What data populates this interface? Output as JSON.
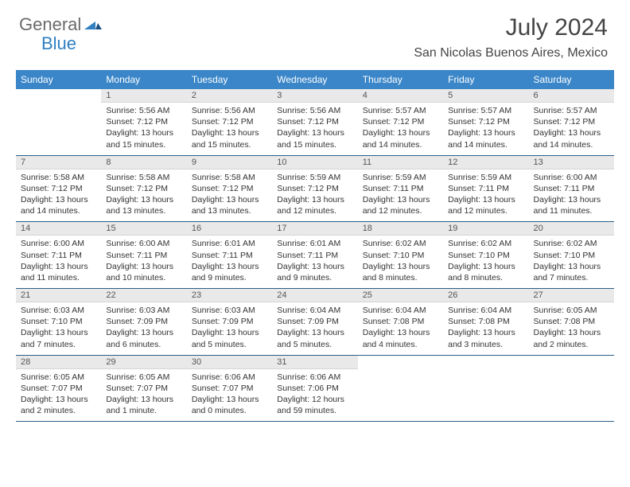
{
  "logo": {
    "general": "General",
    "blue": "Blue"
  },
  "title": "July 2024",
  "location": "San Nicolas Buenos Aires, Mexico",
  "colors": {
    "header_bg": "#3a86c8",
    "header_text": "#ffffff",
    "day_num_bg": "#e9e9e9",
    "row_border": "#2b5f8c",
    "logo_gray": "#6a6a6a",
    "logo_blue": "#2f7fc1"
  },
  "weekdays": [
    "Sunday",
    "Monday",
    "Tuesday",
    "Wednesday",
    "Thursday",
    "Friday",
    "Saturday"
  ],
  "weeks": [
    [
      {
        "n": "",
        "sr": "",
        "ss": "",
        "dl": ""
      },
      {
        "n": "1",
        "sr": "Sunrise: 5:56 AM",
        "ss": "Sunset: 7:12 PM",
        "dl": "Daylight: 13 hours and 15 minutes."
      },
      {
        "n": "2",
        "sr": "Sunrise: 5:56 AM",
        "ss": "Sunset: 7:12 PM",
        "dl": "Daylight: 13 hours and 15 minutes."
      },
      {
        "n": "3",
        "sr": "Sunrise: 5:56 AM",
        "ss": "Sunset: 7:12 PM",
        "dl": "Daylight: 13 hours and 15 minutes."
      },
      {
        "n": "4",
        "sr": "Sunrise: 5:57 AM",
        "ss": "Sunset: 7:12 PM",
        "dl": "Daylight: 13 hours and 14 minutes."
      },
      {
        "n": "5",
        "sr": "Sunrise: 5:57 AM",
        "ss": "Sunset: 7:12 PM",
        "dl": "Daylight: 13 hours and 14 minutes."
      },
      {
        "n": "6",
        "sr": "Sunrise: 5:57 AM",
        "ss": "Sunset: 7:12 PM",
        "dl": "Daylight: 13 hours and 14 minutes."
      }
    ],
    [
      {
        "n": "7",
        "sr": "Sunrise: 5:58 AM",
        "ss": "Sunset: 7:12 PM",
        "dl": "Daylight: 13 hours and 14 minutes."
      },
      {
        "n": "8",
        "sr": "Sunrise: 5:58 AM",
        "ss": "Sunset: 7:12 PM",
        "dl": "Daylight: 13 hours and 13 minutes."
      },
      {
        "n": "9",
        "sr": "Sunrise: 5:58 AM",
        "ss": "Sunset: 7:12 PM",
        "dl": "Daylight: 13 hours and 13 minutes."
      },
      {
        "n": "10",
        "sr": "Sunrise: 5:59 AM",
        "ss": "Sunset: 7:12 PM",
        "dl": "Daylight: 13 hours and 12 minutes."
      },
      {
        "n": "11",
        "sr": "Sunrise: 5:59 AM",
        "ss": "Sunset: 7:11 PM",
        "dl": "Daylight: 13 hours and 12 minutes."
      },
      {
        "n": "12",
        "sr": "Sunrise: 5:59 AM",
        "ss": "Sunset: 7:11 PM",
        "dl": "Daylight: 13 hours and 12 minutes."
      },
      {
        "n": "13",
        "sr": "Sunrise: 6:00 AM",
        "ss": "Sunset: 7:11 PM",
        "dl": "Daylight: 13 hours and 11 minutes."
      }
    ],
    [
      {
        "n": "14",
        "sr": "Sunrise: 6:00 AM",
        "ss": "Sunset: 7:11 PM",
        "dl": "Daylight: 13 hours and 11 minutes."
      },
      {
        "n": "15",
        "sr": "Sunrise: 6:00 AM",
        "ss": "Sunset: 7:11 PM",
        "dl": "Daylight: 13 hours and 10 minutes."
      },
      {
        "n": "16",
        "sr": "Sunrise: 6:01 AM",
        "ss": "Sunset: 7:11 PM",
        "dl": "Daylight: 13 hours and 9 minutes."
      },
      {
        "n": "17",
        "sr": "Sunrise: 6:01 AM",
        "ss": "Sunset: 7:11 PM",
        "dl": "Daylight: 13 hours and 9 minutes."
      },
      {
        "n": "18",
        "sr": "Sunrise: 6:02 AM",
        "ss": "Sunset: 7:10 PM",
        "dl": "Daylight: 13 hours and 8 minutes."
      },
      {
        "n": "19",
        "sr": "Sunrise: 6:02 AM",
        "ss": "Sunset: 7:10 PM",
        "dl": "Daylight: 13 hours and 8 minutes."
      },
      {
        "n": "20",
        "sr": "Sunrise: 6:02 AM",
        "ss": "Sunset: 7:10 PM",
        "dl": "Daylight: 13 hours and 7 minutes."
      }
    ],
    [
      {
        "n": "21",
        "sr": "Sunrise: 6:03 AM",
        "ss": "Sunset: 7:10 PM",
        "dl": "Daylight: 13 hours and 7 minutes."
      },
      {
        "n": "22",
        "sr": "Sunrise: 6:03 AM",
        "ss": "Sunset: 7:09 PM",
        "dl": "Daylight: 13 hours and 6 minutes."
      },
      {
        "n": "23",
        "sr": "Sunrise: 6:03 AM",
        "ss": "Sunset: 7:09 PM",
        "dl": "Daylight: 13 hours and 5 minutes."
      },
      {
        "n": "24",
        "sr": "Sunrise: 6:04 AM",
        "ss": "Sunset: 7:09 PM",
        "dl": "Daylight: 13 hours and 5 minutes."
      },
      {
        "n": "25",
        "sr": "Sunrise: 6:04 AM",
        "ss": "Sunset: 7:08 PM",
        "dl": "Daylight: 13 hours and 4 minutes."
      },
      {
        "n": "26",
        "sr": "Sunrise: 6:04 AM",
        "ss": "Sunset: 7:08 PM",
        "dl": "Daylight: 13 hours and 3 minutes."
      },
      {
        "n": "27",
        "sr": "Sunrise: 6:05 AM",
        "ss": "Sunset: 7:08 PM",
        "dl": "Daylight: 13 hours and 2 minutes."
      }
    ],
    [
      {
        "n": "28",
        "sr": "Sunrise: 6:05 AM",
        "ss": "Sunset: 7:07 PM",
        "dl": "Daylight: 13 hours and 2 minutes."
      },
      {
        "n": "29",
        "sr": "Sunrise: 6:05 AM",
        "ss": "Sunset: 7:07 PM",
        "dl": "Daylight: 13 hours and 1 minute."
      },
      {
        "n": "30",
        "sr": "Sunrise: 6:06 AM",
        "ss": "Sunset: 7:07 PM",
        "dl": "Daylight: 13 hours and 0 minutes."
      },
      {
        "n": "31",
        "sr": "Sunrise: 6:06 AM",
        "ss": "Sunset: 7:06 PM",
        "dl": "Daylight: 12 hours and 59 minutes."
      },
      {
        "n": "",
        "sr": "",
        "ss": "",
        "dl": ""
      },
      {
        "n": "",
        "sr": "",
        "ss": "",
        "dl": ""
      },
      {
        "n": "",
        "sr": "",
        "ss": "",
        "dl": ""
      }
    ]
  ]
}
